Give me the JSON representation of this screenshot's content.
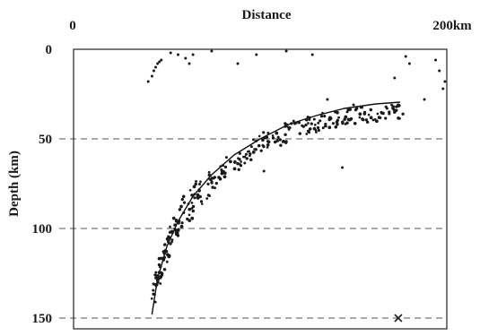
{
  "chart_data": {
    "type": "scatter",
    "title": "Distance",
    "ylabel": "Depth (km)",
    "x_start_label": "0",
    "x_end_label": "200km",
    "xlim": [
      0,
      200
    ],
    "ylim": [
      0,
      150
    ],
    "y_ticks": [
      "0",
      "50",
      "100",
      "150"
    ],
    "y_tick_values": [
      0,
      50,
      100,
      150
    ],
    "reference_lines_y": [
      50,
      100,
      150
    ],
    "grid": false,
    "legend": "none",
    "point_color": "#1a1a1a",
    "curve": {
      "x": [
        42,
        45,
        50,
        56,
        64,
        74,
        86,
        100,
        115,
        130,
        145,
        162,
        175
      ],
      "y": [
        148,
        128,
        110,
        96,
        82,
        70,
        59,
        50,
        42,
        37,
        33,
        30.5,
        29.5
      ]
    },
    "cluster_seeds": {
      "x": [
        42,
        46,
        50,
        55,
        62,
        70,
        80,
        92,
        104,
        116,
        128,
        140,
        152,
        164,
        174
      ],
      "y": [
        142,
        125,
        112,
        100,
        88,
        77,
        67,
        58,
        51,
        46,
        42,
        39,
        37,
        36,
        35
      ]
    },
    "scattered_points": {
      "x": [
        40,
        42,
        43,
        44,
        45,
        46,
        47,
        52,
        56,
        60,
        64,
        62,
        69,
        74,
        88,
        98,
        102,
        114,
        128,
        136,
        150,
        168,
        172,
        178,
        180,
        190,
        194,
        196,
        199,
        198,
        188,
        144
      ],
      "y": [
        18,
        15,
        12,
        10,
        8,
        7,
        6,
        2,
        3,
        5,
        3,
        8,
        0,
        1,
        8,
        3,
        68,
        1,
        3,
        28,
        31,
        33,
        16,
        4,
        8,
        0,
        6,
        12,
        18,
        22,
        28,
        66
      ]
    },
    "annotation_x_marker": {
      "x": 174,
      "y": 150
    }
  }
}
